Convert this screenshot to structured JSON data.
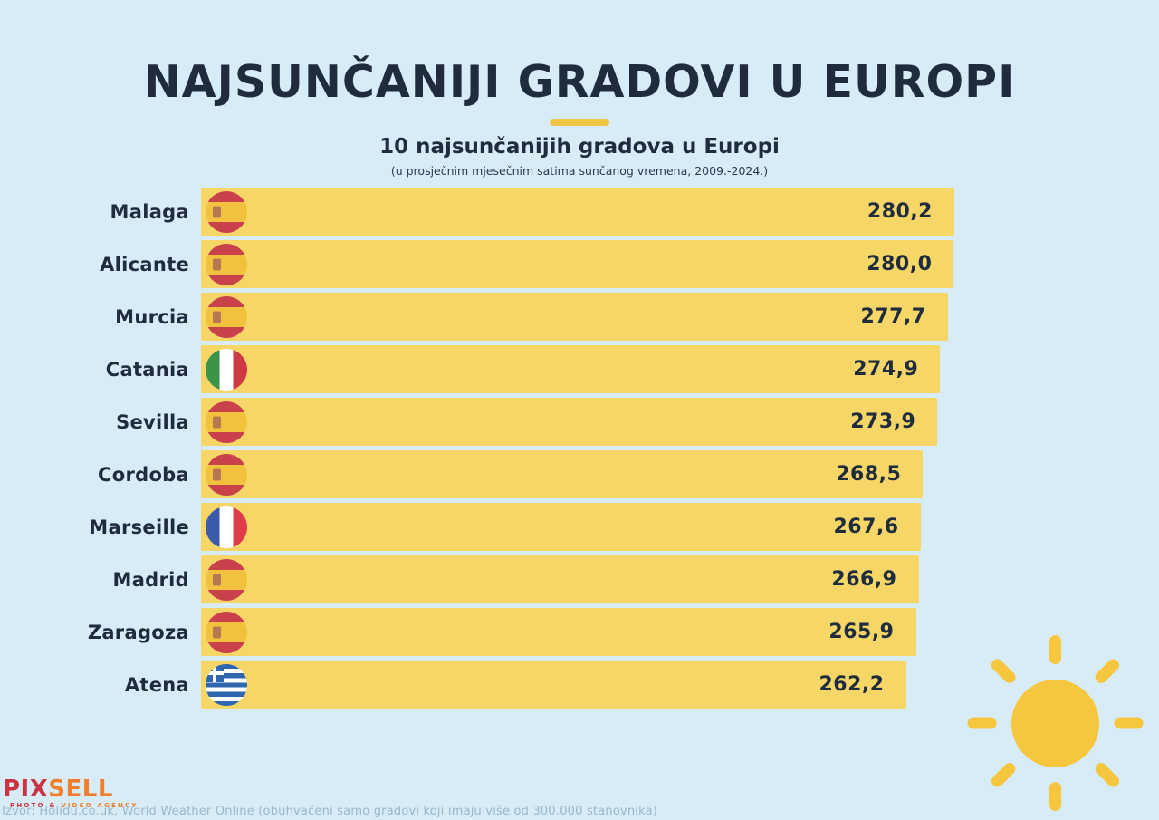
{
  "title": "NAJSUNČANIJI GRADOVI U EUROPI",
  "subtitle": "10 najsunčanijih gradova u Europi",
  "subnote": "(u prosječnim mjesečnim satima sunčanog vremena, 2009.-2024.)",
  "source": "Izvor: Holidu.co.uk, World Weather Online (obuhvaćeni samo gradovi koji imaju više od 300.000 stanovnika)",
  "logo": {
    "part1": "PIX",
    "part2": "SELL",
    "tagline1": "PHOTO &",
    "tagline2": "VIDEO AGENCY"
  },
  "colors": {
    "background": "#D8ECF8",
    "bar_yellow": "#F5D666",
    "accent_gold": "#F2C544",
    "sun_yellow": "#F7C63F",
    "navy_text": "#1F2C3E",
    "logo_red": "#C93440",
    "logo_orange": "#EF7F2C",
    "source_text": "#9DB6C8"
  },
  "chart_data": {
    "type": "bar",
    "orientation": "horizontal",
    "title": "10 najsunčanijih gradova u Europi",
    "note": "(u prosječnim mjesečnim satima sunčanog vremena, 2009.-2024.)",
    "value_axis_range": [
      0,
      280.2
    ],
    "max_value": 280.2,
    "grid": false,
    "legend": false,
    "rows": [
      {
        "city": "Malaga",
        "country": "spain",
        "flag_icon": "spain-flag-icon",
        "value": 280.2,
        "value_label": "280,2"
      },
      {
        "city": "Alicante",
        "country": "spain",
        "flag_icon": "spain-flag-icon",
        "value": 280.0,
        "value_label": "280,0"
      },
      {
        "city": "Murcia",
        "country": "spain",
        "flag_icon": "spain-flag-icon",
        "value": 277.7,
        "value_label": "277,7"
      },
      {
        "city": "Catania",
        "country": "italy",
        "flag_icon": "italy-flag-icon",
        "value": 274.9,
        "value_label": "274,9"
      },
      {
        "city": "Sevilla",
        "country": "spain",
        "flag_icon": "spain-flag-icon",
        "value": 273.9,
        "value_label": "273,9"
      },
      {
        "city": "Cordoba",
        "country": "spain",
        "flag_icon": "spain-flag-icon",
        "value": 268.5,
        "value_label": "268,5"
      },
      {
        "city": "Marseille",
        "country": "france",
        "flag_icon": "france-flag-icon",
        "value": 267.6,
        "value_label": "267,6"
      },
      {
        "city": "Madrid",
        "country": "spain",
        "flag_icon": "spain-flag-icon",
        "value": 266.9,
        "value_label": "266,9"
      },
      {
        "city": "Zaragoza",
        "country": "spain",
        "flag_icon": "spain-flag-icon",
        "value": 265.9,
        "value_label": "265,9"
      },
      {
        "city": "Atena",
        "country": "greece",
        "flag_icon": "greece-flag-icon",
        "value": 262.2,
        "value_label": "262,2"
      }
    ]
  }
}
